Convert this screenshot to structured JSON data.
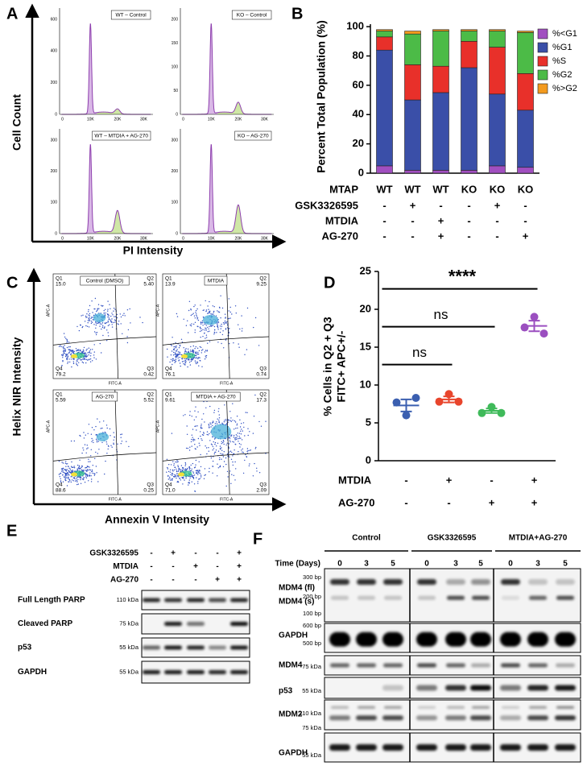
{
  "panels": {
    "A": {
      "label": "A",
      "y_label": "Cell Count",
      "x_label": "PI Intensity",
      "x_ticks": [
        "0",
        "10K",
        "20K",
        "30K"
      ],
      "plots": [
        {
          "title": "WT – Control",
          "y_ticks": [
            "0",
            "200",
            "400",
            "600"
          ]
        },
        {
          "title": "KO – Control",
          "y_ticks": [
            "0",
            "50",
            "100",
            "150",
            "200"
          ]
        },
        {
          "title": "WT – MTDIA + AG-270",
          "y_ticks": [
            "0",
            "100",
            "200",
            "300"
          ]
        },
        {
          "title": "KO – AG-270",
          "y_ticks": [
            "0",
            "100",
            "200",
            "300"
          ]
        }
      ]
    },
    "B": {
      "label": "B"
    },
    "C": {
      "label": "C",
      "y_label": "Helix NIR Intensity",
      "x_label": "Annexin V Intensity",
      "plot_y_label": "APC-A",
      "plot_x_label": "FITC-A",
      "plots": [
        {
          "title": "Control (DMSO)",
          "quadrants": [
            {
              "name": "Q1",
              "value": "15.0"
            },
            {
              "name": "Q2",
              "value": "5.40"
            },
            {
              "name": "Q3",
              "value": "0.42"
            },
            {
              "name": "Q4",
              "value": "79.2"
            }
          ]
        },
        {
          "title": "MTDIA",
          "quadrants": [
            {
              "name": "Q1",
              "value": "13.9"
            },
            {
              "name": "Q2",
              "value": "9.25"
            },
            {
              "name": "Q3",
              "value": "0.74"
            },
            {
              "name": "Q4",
              "value": "76.1"
            }
          ]
        },
        {
          "title": "AG-270",
          "quadrants": [
            {
              "name": "Q1",
              "value": "5.59"
            },
            {
              "name": "Q2",
              "value": "5.52"
            },
            {
              "name": "Q3",
              "value": "0.25"
            },
            {
              "name": "Q4",
              "value": "88.6"
            }
          ]
        },
        {
          "title": "MTDIA + AG-270",
          "quadrants": [
            {
              "name": "Q1",
              "value": "9.61"
            },
            {
              "name": "Q2",
              "value": "17.3"
            },
            {
              "name": "Q3",
              "value": "2.09"
            },
            {
              "name": "Q4",
              "value": "71.0"
            }
          ]
        }
      ]
    },
    "D": {
      "label": "D"
    },
    "E": {
      "label": "E",
      "conditions": [
        {
          "name": "GSK3326595",
          "values": [
            "-",
            "+",
            "-",
            "-",
            "+"
          ]
        },
        {
          "name": "MTDIA",
          "values": [
            "-",
            "-",
            "+",
            "-",
            "+"
          ]
        },
        {
          "name": "AG-270",
          "values": [
            "-",
            "-",
            "-",
            "+",
            "+"
          ]
        }
      ],
      "blots": [
        {
          "name": "Full Length PARP",
          "marker": "110 kDa"
        },
        {
          "name": "Cleaved PARP",
          "marker": "75 kDa"
        },
        {
          "name": "p53",
          "marker": "55 kDa"
        },
        {
          "name": "GAPDH",
          "marker": "55 kDa"
        }
      ]
    },
    "F": {
      "label": "F",
      "groups": [
        "Control",
        "GSK3326595",
        "MTDIA+AG-270"
      ],
      "time_label": "Time (Days)",
      "times": [
        "0",
        "3",
        "5"
      ],
      "blots": [
        {
          "names": [
            "MDM4 (fl)",
            "MDM4 (s)"
          ],
          "markers": [
            "300 bp",
            "200 bp",
            "100 bp"
          ]
        },
        {
          "names": [
            "GAPDH"
          ],
          "markers": [
            "600 bp",
            "500 bp"
          ]
        },
        {
          "names": [
            "MDM4"
          ],
          "markers": [
            "75 kDa"
          ]
        },
        {
          "names": [
            "p53"
          ],
          "markers": [
            "55 kDa"
          ]
        },
        {
          "names": [
            "MDM2"
          ],
          "markers": [
            "110 kDa",
            "75 kDa"
          ]
        },
        {
          "names": [
            "GAPDH"
          ],
          "markers": [
            "55 kDa"
          ]
        }
      ]
    }
  },
  "chart_data": [
    {
      "type": "bar",
      "stacked": true,
      "y_label": "Percent Total Population (%)",
      "category_label": "MTAP",
      "categories": [
        "WT",
        "WT",
        "WT",
        "KO",
        "KO",
        "KO"
      ],
      "series": [
        {
          "name": "%<G1",
          "color": "#a14fc0",
          "values": [
            5,
            2,
            2,
            2,
            5,
            4
          ]
        },
        {
          "name": "%G1",
          "color": "#3a4fa8",
          "values": [
            79,
            48,
            53,
            70,
            49,
            39
          ]
        },
        {
          "name": "%S",
          "color": "#e8302a",
          "values": [
            9,
            24,
            18,
            18,
            32,
            25
          ]
        },
        {
          "name": "%G2",
          "color": "#4cbb47",
          "values": [
            4,
            21,
            24,
            7,
            11,
            28
          ]
        },
        {
          "name": "%>G2",
          "color": "#f39a1e",
          "values": [
            1,
            2,
            1,
            1,
            1,
            1
          ]
        }
      ],
      "conditions": [
        {
          "name": "GSK3326595",
          "values": [
            "-",
            "+",
            "-",
            "-",
            "+",
            "-"
          ]
        },
        {
          "name": "MTDIA",
          "values": [
            "-",
            "-",
            "+",
            "-",
            "-",
            "-"
          ]
        },
        {
          "name": "AG-270",
          "values": [
            "-",
            "-",
            "+",
            "-",
            "-",
            "+"
          ]
        }
      ],
      "ylim": [
        0,
        105
      ],
      "yticks": [
        0,
        20,
        40,
        60,
        80,
        100
      ],
      "legend": "right"
    },
    {
      "type": "dot",
      "y_label_lines": [
        "% Cells in Q2 + Q3",
        "FITC+ APC+/-"
      ],
      "series": [
        {
          "color": "#3b5fb0",
          "values": [
            7.7,
            6.0,
            8.3
          ],
          "mean": 7.3,
          "error": 0.8
        },
        {
          "color": "#e8452c",
          "values": [
            7.8,
            8.8,
            7.8
          ],
          "mean": 8.1,
          "error": 0.4
        },
        {
          "color": "#3fba5a",
          "values": [
            6.3,
            7.1,
            6.3
          ],
          "mean": 6.6,
          "error": 0.3
        },
        {
          "color": "#9b4fc0",
          "values": [
            17.6,
            19.0,
            16.8
          ],
          "mean": 17.8,
          "error": 0.7
        }
      ],
      "conditions": [
        {
          "name": "MTDIA",
          "values": [
            "-",
            "+",
            "-",
            "+"
          ]
        },
        {
          "name": "AG-270",
          "values": [
            "-",
            "-",
            "+",
            "+"
          ]
        }
      ],
      "ylim": [
        0,
        25
      ],
      "yticks": [
        0,
        5,
        10,
        15,
        20,
        25
      ],
      "annotations": [
        {
          "text": "****",
          "from": 0,
          "to": 3,
          "y": 22.7
        },
        {
          "text": "ns",
          "from": 0,
          "to": 2,
          "y": 17.7
        },
        {
          "text": "ns",
          "from": 0,
          "to": 1,
          "y": 12.7
        }
      ]
    }
  ]
}
